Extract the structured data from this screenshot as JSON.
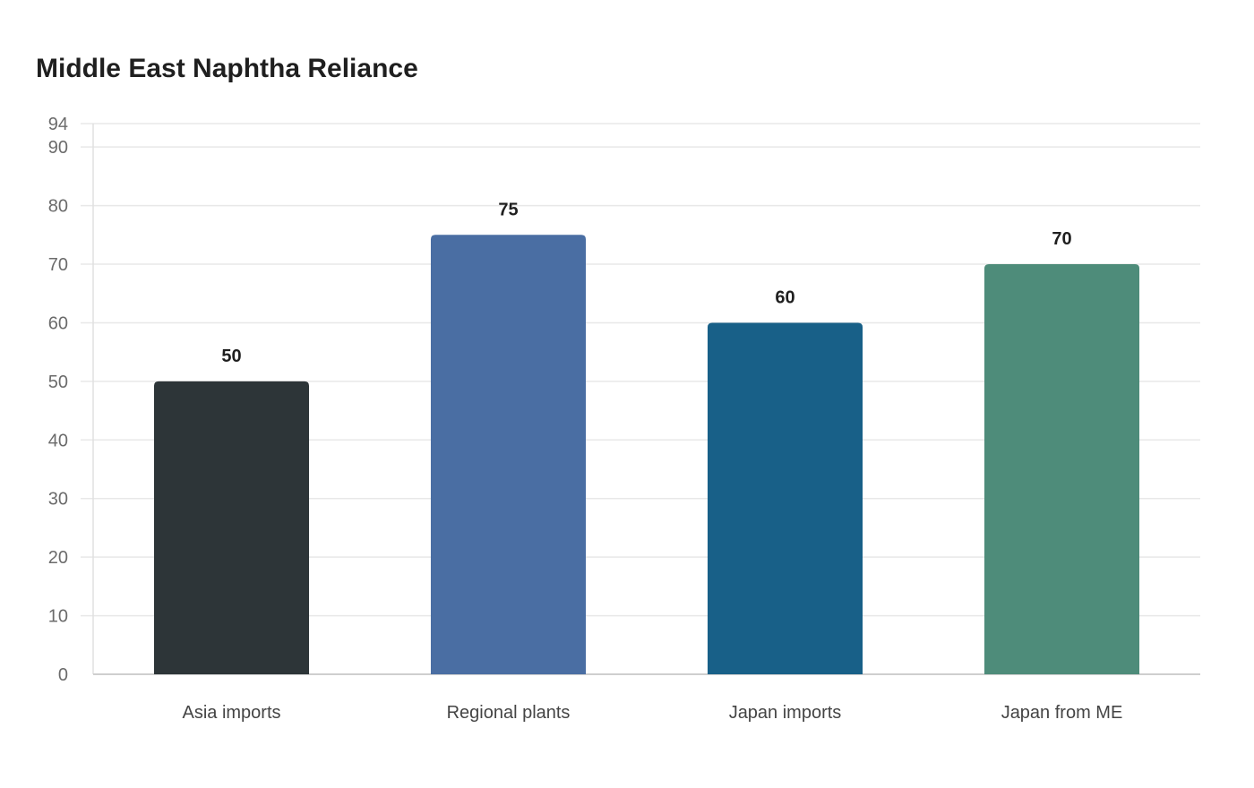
{
  "chart_data": {
    "type": "bar",
    "title": "Middle East Naphtha Reliance",
    "categories": [
      "Asia imports",
      "Regional plants",
      "Japan imports",
      "Japan from ME"
    ],
    "values": [
      50,
      75,
      60,
      70
    ],
    "colors": [
      "#2d3538",
      "#4a6ea3",
      "#186088",
      "#4e8c7a"
    ],
    "ylim": [
      0,
      94
    ],
    "yticks": [
      0,
      10,
      20,
      30,
      40,
      50,
      60,
      70,
      80,
      90,
      94
    ],
    "grid": true,
    "legend": "none",
    "xlabel": "",
    "ylabel": ""
  }
}
